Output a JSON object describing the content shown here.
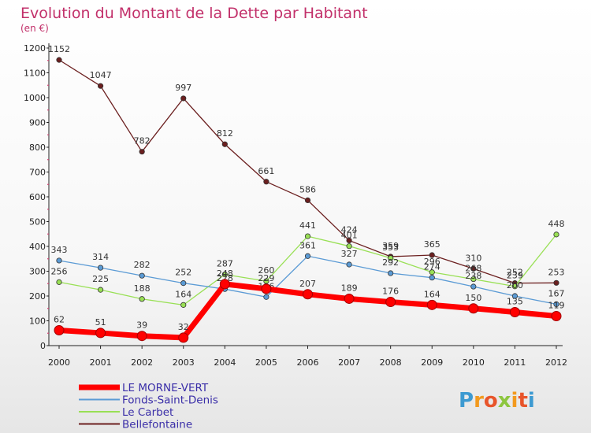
{
  "chart_data": {
    "type": "line",
    "title": "Evolution du Montant de la Dette par Habitant",
    "subtitle": "(en €)",
    "xlabel": "",
    "ylabel": "",
    "ylim": [
      0,
      1200
    ],
    "yticks": [
      0,
      100,
      200,
      300,
      400,
      500,
      600,
      700,
      800,
      900,
      1000,
      1100,
      1200
    ],
    "categories": [
      "2000",
      "2001",
      "2002",
      "2003",
      "2004",
      "2005",
      "2006",
      "2007",
      "2008",
      "2009",
      "2010",
      "2011",
      "2012"
    ],
    "grid": false,
    "legend_position": "bottom-left",
    "series": [
      {
        "name": "LE MORNE-VERT",
        "color": "#ff0000",
        "values": [
          62,
          51,
          39,
          32,
          248,
          229,
          207,
          189,
          176,
          164,
          150,
          135,
          119
        ]
      },
      {
        "name": "Fonds-Saint-Denis",
        "color": "#5b9bd5",
        "values": [
          343,
          314,
          282,
          252,
          228,
          196,
          361,
          327,
          292,
          274,
          238,
          200,
          167
        ]
      },
      {
        "name": "Le Carbet",
        "color": "#99e055",
        "values": [
          256,
          225,
          188,
          164,
          287,
          260,
          441,
          401,
          353,
          296,
          268,
          239,
          448
        ]
      },
      {
        "name": "Bellefontaine",
        "color": "#6b1f1f",
        "values": [
          1152,
          1047,
          782,
          997,
          812,
          661,
          586,
          424,
          359,
          365,
          310,
          252,
          253
        ]
      }
    ]
  },
  "logo": {
    "text": "Proxiti"
  }
}
